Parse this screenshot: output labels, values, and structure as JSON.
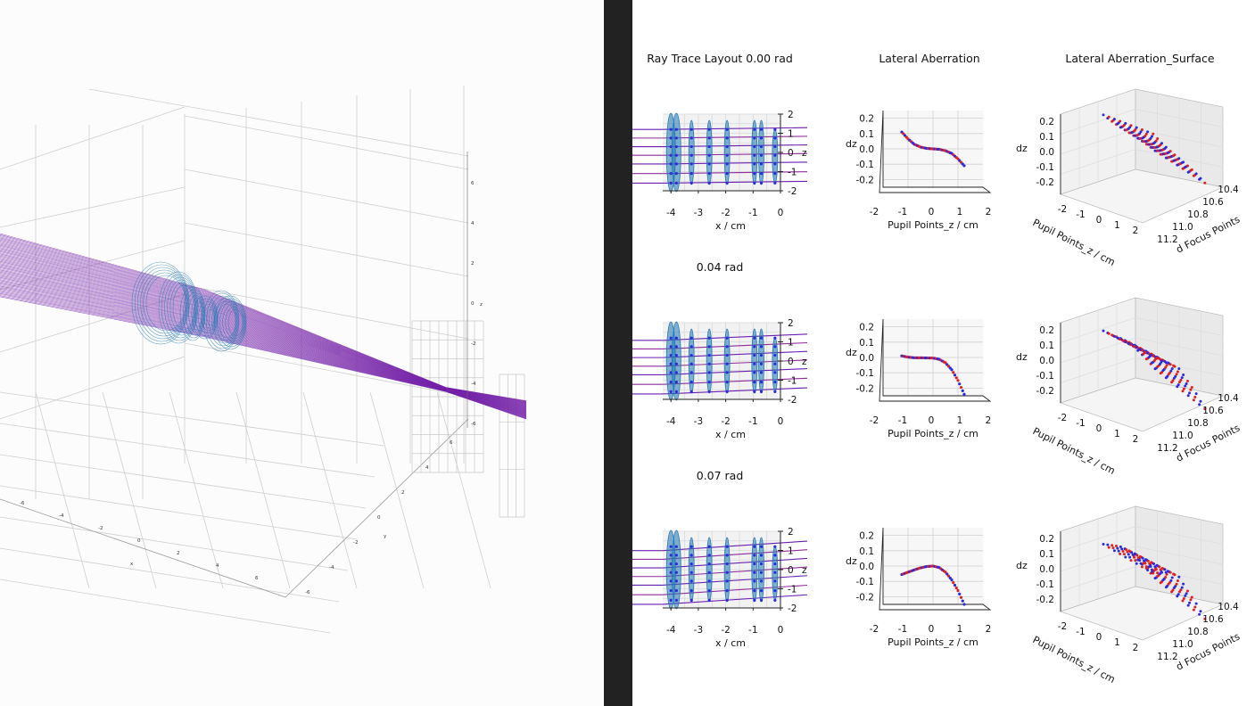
{
  "colors": {
    "lens": "#1f77b4",
    "ray": "#6a1fb0",
    "ray_alt": "#8e2c9a",
    "points_blue": "#2a2adf",
    "points_red": "#e02020",
    "divider": "#222222"
  },
  "left_view": {
    "type": "3d-ray-trace",
    "axis_label_x": "x",
    "axis_label_y": "y",
    "axis_label_z": "z",
    "x_ticks": [
      "-6",
      "-4",
      "-2",
      "0",
      "2",
      "4",
      "6"
    ],
    "y_ticks": [
      "-6",
      "-4",
      "-2",
      "0",
      "2",
      "4",
      "6"
    ],
    "z_ticks": [
      "6",
      "4",
      "2",
      "0",
      "-2",
      "-4",
      "-6"
    ]
  },
  "rows": [
    {
      "label": "Ray Trace Layout 0.00 rad"
    },
    {
      "label": "0.04 rad"
    },
    {
      "label": "0.07 rad"
    }
  ],
  "column_titles": [
    "Lateral Aberration",
    "Lateral Aberration_Surface"
  ],
  "chart_data": [
    {
      "type": "line",
      "title": "Ray Trace Layout",
      "xlabel": "x / cm",
      "x_ticks": [
        "-4",
        "-3",
        "-2",
        "-1",
        "0"
      ],
      "y_ticks": [
        "2",
        "1",
        "0",
        "-1",
        "-2"
      ],
      "z_label": "z",
      "xlim": [
        -4.3,
        0
      ],
      "ylim": [
        -2,
        2
      ],
      "lens_positions": [
        -4.0,
        -3.8,
        -3.25,
        -2.6,
        -1.95,
        -0.95,
        -0.7,
        -0.2
      ],
      "series": [
        {
          "angle_rad": 0.0,
          "ray_heights": [
            -1.6,
            -1.1,
            -0.6,
            -0.15,
            0.3,
            0.75,
            1.2
          ]
        },
        {
          "angle_rad": 0.04,
          "ray_heights": [
            -1.6,
            -1.1,
            -0.6,
            -0.15,
            0.3,
            0.75,
            1.2
          ]
        },
        {
          "angle_rad": 0.07,
          "ray_heights": [
            -1.6,
            -1.1,
            -0.6,
            -0.15,
            0.3,
            0.75,
            1.2
          ]
        }
      ]
    },
    {
      "type": "scatter",
      "title": "Lateral Aberration",
      "xlabel": "Pupil Points_z / cm",
      "ylabel": "dz",
      "x_ticks": [
        "-2",
        "-1",
        "0",
        "1",
        "2"
      ],
      "y_ticks": [
        "0.2",
        "0.1",
        "0.0",
        "-0.1",
        "-0.2"
      ],
      "xlim": [
        -2,
        2
      ],
      "ylim": [
        -0.25,
        0.25
      ],
      "series": [
        {
          "name": "0.00 rad",
          "x": [
            -1.25,
            -1.0,
            -0.75,
            -0.5,
            -0.25,
            0.0,
            0.25,
            0.5,
            0.75,
            1.0,
            1.25
          ],
          "y": [
            0.11,
            0.065,
            0.03,
            0.012,
            0.003,
            0.0,
            -0.003,
            -0.012,
            -0.03,
            -0.065,
            -0.11
          ]
        },
        {
          "name": "0.04 rad",
          "x": [
            -1.25,
            -1.0,
            -0.75,
            -0.5,
            -0.25,
            0.0,
            0.25,
            0.5,
            0.75,
            1.0,
            1.25
          ],
          "y": [
            0.01,
            0.002,
            -0.002,
            -0.002,
            -0.003,
            -0.004,
            -0.012,
            -0.035,
            -0.08,
            -0.15,
            -0.24
          ]
        },
        {
          "name": "0.07 rad",
          "x": [
            -1.25,
            -1.0,
            -0.75,
            -0.5,
            -0.25,
            0.0,
            0.25,
            0.5,
            0.75,
            1.0,
            1.25
          ],
          "y": [
            -0.055,
            -0.04,
            -0.025,
            -0.012,
            -0.003,
            0.0,
            -0.01,
            -0.04,
            -0.09,
            -0.16,
            -0.25
          ]
        }
      ]
    },
    {
      "type": "scatter",
      "title": "Lateral Aberration_Surface",
      "xlabel": "Pupil Points_z / cm",
      "ylabel": "dz",
      "zlabel": "d Focus Points",
      "x_ticks": [
        "-2",
        "-1",
        "0",
        "1",
        "2"
      ],
      "y_ticks": [
        "0.2",
        "0.1",
        "0.0",
        "-0.1",
        "-0.2"
      ],
      "focus_ticks": [
        "10.4",
        "10.6",
        "10.8",
        "11.0",
        "11.2"
      ],
      "series": [
        {
          "name": "0.00 rad",
          "edge_profile": [
            0.11,
            0.065,
            0.03,
            0.0,
            -0.03,
            -0.065,
            -0.11
          ]
        },
        {
          "name": "0.04 rad",
          "edge_profile": [
            0.01,
            -0.002,
            -0.004,
            -0.012,
            -0.08,
            -0.15,
            -0.24
          ]
        },
        {
          "name": "0.07 rad",
          "edge_profile": [
            -0.055,
            -0.025,
            0.0,
            -0.01,
            -0.09,
            -0.16,
            -0.25
          ]
        }
      ]
    }
  ]
}
